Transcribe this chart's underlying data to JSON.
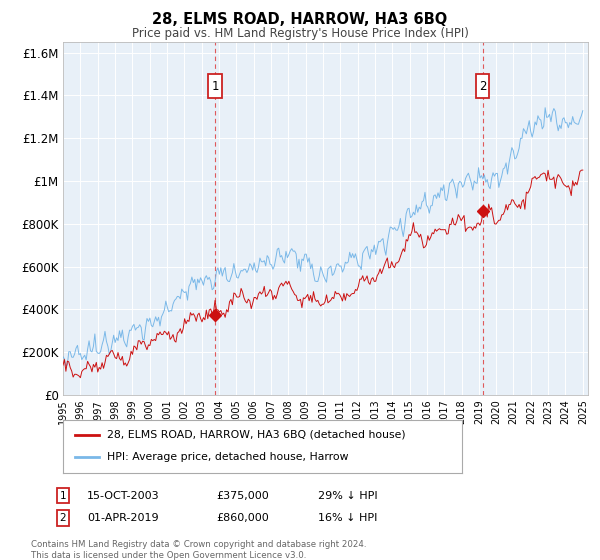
{
  "title": "28, ELMS ROAD, HARROW, HA3 6BQ",
  "subtitle": "Price paid vs. HM Land Registry's House Price Index (HPI)",
  "plot_bg_color": "#e8f0f8",
  "ylim": [
    0,
    1650000
  ],
  "yticks": [
    0,
    200000,
    400000,
    600000,
    800000,
    1000000,
    1200000,
    1400000,
    1600000
  ],
  "ytick_labels": [
    "£0",
    "£200K",
    "£400K",
    "£600K",
    "£800K",
    "£1M",
    "£1.2M",
    "£1.4M",
    "£1.6M"
  ],
  "year_start": 1995,
  "year_end": 2025,
  "sale1_year": 2003.79,
  "sale1_price": 375000,
  "sale2_year": 2019.25,
  "sale2_price": 860000,
  "hpi_color": "#7ab8e8",
  "price_color": "#cc1111",
  "legend_label_price": "28, ELMS ROAD, HARROW, HA3 6BQ (detached house)",
  "legend_label_hpi": "HPI: Average price, detached house, Harrow",
  "annotation1_date": "15-OCT-2003",
  "annotation1_price": "£375,000",
  "annotation1_hpi": "29% ↓ HPI",
  "annotation2_date": "01-APR-2019",
  "annotation2_price": "£860,000",
  "annotation2_hpi": "16% ↓ HPI",
  "footnote": "Contains HM Land Registry data © Crown copyright and database right 2024.\nThis data is licensed under the Open Government Licence v3.0."
}
